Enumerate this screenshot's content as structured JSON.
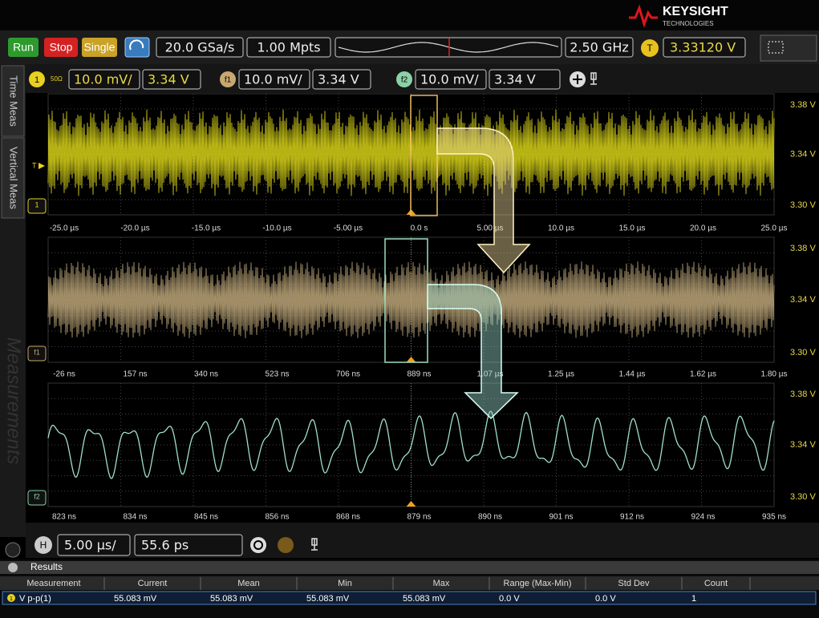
{
  "brand": {
    "name": "KEYSIGHT",
    "subtitle": "TECHNOLOGIES"
  },
  "toolbar": {
    "run": "Run",
    "stop": "Stop",
    "single": "Single",
    "sample_rate": "20.0 GSa/s",
    "memory": "1.00 Mpts",
    "bandwidth": "2.50 GHz",
    "trigger_badge": "T",
    "trigger_level": "3.33120 V"
  },
  "channels": [
    {
      "badge": "1",
      "impedance": "50Ω",
      "scale": "10.0 mV/",
      "offset": "3.34 V"
    },
    {
      "badge": "f1",
      "scale": "10.0 mV/",
      "offset": "3.34 V"
    },
    {
      "badge": "f2",
      "scale": "10.0 mV/",
      "offset": "3.34 V"
    }
  ],
  "side_tabs": [
    "Time Meas",
    "Vertical Meas",
    "Measurements"
  ],
  "panels": [
    {
      "badge": "1",
      "trigger": "T",
      "y_labels": [
        "3.38 V",
        "3.34 V",
        "3.30 V"
      ],
      "x_labels": [
        "-25.0 µs",
        "-20.0 µs",
        "-15.0 µs",
        "-10.0 µs",
        "-5.00 µs",
        "0.0 s",
        "5.00 µs",
        "10.0 µs",
        "15.0 µs",
        "20.0 µs",
        "25.0 µs"
      ]
    },
    {
      "badge": "f1",
      "y_labels": [
        "3.38 V",
        "3.34 V",
        "3.30 V"
      ],
      "x_labels": [
        "-26 ns",
        "157 ns",
        "340 ns",
        "523 ns",
        "706 ns",
        "889 ns",
        "1.07 µs",
        "1.25 µs",
        "1.44 µs",
        "1.62 µs",
        "1.80 µs"
      ]
    },
    {
      "badge": "f2",
      "y_labels": [
        "3.38 V",
        "3.34 V",
        "3.30 V"
      ],
      "x_labels": [
        "823 ns",
        "834 ns",
        "845 ns",
        "856 ns",
        "868 ns",
        "879 ns",
        "890 ns",
        "901 ns",
        "912 ns",
        "924 ns",
        "935 ns"
      ]
    }
  ],
  "horizontal": {
    "badge": "H",
    "scale": "5.00 µs/",
    "delay": "55.6 ps"
  },
  "results": {
    "title": "Results",
    "columns": [
      "Measurement",
      "Current",
      "Mean",
      "Min",
      "Max",
      "Range (Max-Min)",
      "Std Dev",
      "Count"
    ],
    "rows": [
      {
        "badge": "1",
        "cells": [
          "V p-p(1)",
          "55.083 mV",
          "55.083 mV",
          "55.083 mV",
          "55.083 mV",
          "0.0 V",
          "0.0 V",
          "1"
        ]
      }
    ]
  }
}
